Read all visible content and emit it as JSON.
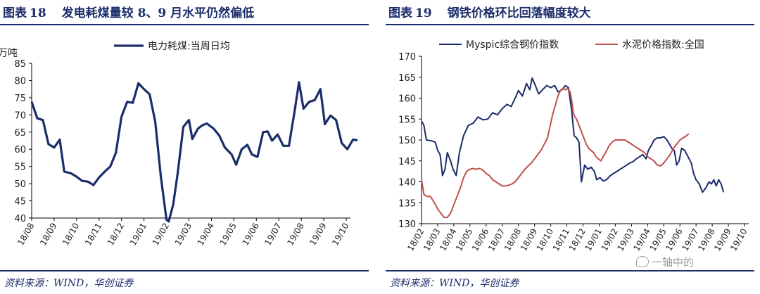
{
  "left": {
    "fig_label": "图表",
    "fig_number": "18",
    "fig_title": "发电耗煤量较 8、9 月水平仍然偏低",
    "source": "资料来源：WIND，华创证券"
  },
  "right": {
    "fig_label": "图表",
    "fig_number": "19",
    "fig_title": "钢铁价格环比回落幅度较大",
    "source": "资料来源：WIND，华创证券"
  },
  "watermark": "一轴中的",
  "chart_data": [
    {
      "type": "line",
      "title": "",
      "ylabel": "万吨",
      "ylim": [
        40,
        85
      ],
      "yticks": [
        40,
        45,
        50,
        55,
        60,
        65,
        70,
        75,
        80,
        85
      ],
      "grid": false,
      "legend_position": "top",
      "categories": [
        "18/08",
        "18/09",
        "18/10",
        "18/11",
        "18/12",
        "19/01",
        "19/02",
        "19/03",
        "19/04",
        "19/05",
        "19/06",
        "19/07",
        "19/08",
        "19/09",
        "19/10"
      ],
      "series": [
        {
          "name": "电力耗煤:当周日均",
          "color": "#1b2d6b",
          "points": [
            [
              0.0,
              73.8
            ],
            [
              0.25,
              69.0
            ],
            [
              0.5,
              68.5
            ],
            [
              0.75,
              61.5
            ],
            [
              1.0,
              60.5
            ],
            [
              1.25,
              62.8
            ],
            [
              1.45,
              53.5
            ],
            [
              1.75,
              53.0
            ],
            [
              2.0,
              52.0
            ],
            [
              2.25,
              50.8
            ],
            [
              2.5,
              50.6
            ],
            [
              2.75,
              49.6
            ],
            [
              3.0,
              51.8
            ],
            [
              3.25,
              53.5
            ],
            [
              3.5,
              55.0
            ],
            [
              3.75,
              59.0
            ],
            [
              4.0,
              69.5
            ],
            [
              4.25,
              73.8
            ],
            [
              4.5,
              73.5
            ],
            [
              4.75,
              79.2
            ],
            [
              5.0,
              77.5
            ],
            [
              5.25,
              76.0
            ],
            [
              5.5,
              68.0
            ],
            [
              5.75,
              52.0
            ],
            [
              6.0,
              39.5
            ],
            [
              6.1,
              39.0
            ],
            [
              6.3,
              44.0
            ],
            [
              6.5,
              53.0
            ],
            [
              6.75,
              66.5
            ],
            [
              7.0,
              68.5
            ],
            [
              7.15,
              63.0
            ],
            [
              7.4,
              66.0
            ],
            [
              7.6,
              67.0
            ],
            [
              7.8,
              67.5
            ],
            [
              8.1,
              66.0
            ],
            [
              8.35,
              64.0
            ],
            [
              8.6,
              60.5
            ],
            [
              8.9,
              58.5
            ],
            [
              9.1,
              55.5
            ],
            [
              9.35,
              60.0
            ],
            [
              9.6,
              61.3
            ],
            [
              9.8,
              58.5
            ],
            [
              10.05,
              57.8
            ],
            [
              10.3,
              65.0
            ],
            [
              10.5,
              65.2
            ],
            [
              10.7,
              62.5
            ],
            [
              10.95,
              64.3
            ],
            [
              11.2,
              61.0
            ],
            [
              11.45,
              61.0
            ],
            [
              11.7,
              71.0
            ],
            [
              11.9,
              79.5
            ],
            [
              12.1,
              71.8
            ],
            [
              12.35,
              73.8
            ],
            [
              12.6,
              74.3
            ],
            [
              12.85,
              77.5
            ],
            [
              13.05,
              67.3
            ],
            [
              13.3,
              69.8
            ],
            [
              13.55,
              68.5
            ],
            [
              13.8,
              61.8
            ],
            [
              14.05,
              60.0
            ],
            [
              14.3,
              62.8
            ],
            [
              14.5,
              62.6
            ]
          ]
        }
      ]
    },
    {
      "type": "line",
      "title": "",
      "ylim": [
        130,
        170
      ],
      "yticks": [
        130,
        135,
        140,
        145,
        150,
        155,
        160,
        165,
        170
      ],
      "grid": false,
      "legend_position": "top",
      "categories": [
        "18/02",
        "18/03",
        "18/04",
        "18/05",
        "18/06",
        "18/07",
        "18/08",
        "18/09",
        "18/10",
        "18/11",
        "18/12",
        "19/01",
        "19/02",
        "19/03",
        "19/04",
        "19/05",
        "19/06",
        "19/07",
        "19/08",
        "19/09",
        "19/10"
      ],
      "series": [
        {
          "name": "Myspic综合钢价指数",
          "color": "#1b2d6b",
          "points": [
            [
              0.0,
              154.5
            ],
            [
              0.15,
              153.5
            ],
            [
              0.3,
              150.0
            ],
            [
              0.6,
              149.8
            ],
            [
              0.85,
              149.5
            ],
            [
              1.0,
              147.5
            ],
            [
              1.15,
              146.5
            ],
            [
              1.3,
              141.5
            ],
            [
              1.45,
              143.0
            ],
            [
              1.6,
              147.0
            ],
            [
              1.8,
              145.0
            ],
            [
              1.95,
              143.0
            ],
            [
              2.15,
              141.5
            ],
            [
              2.35,
              147.0
            ],
            [
              2.6,
              151.0
            ],
            [
              2.9,
              153.5
            ],
            [
              3.2,
              154.0
            ],
            [
              3.5,
              155.5
            ],
            [
              3.8,
              154.8
            ],
            [
              4.1,
              155.0
            ],
            [
              4.4,
              156.5
            ],
            [
              4.7,
              156.0
            ],
            [
              5.0,
              157.5
            ],
            [
              5.3,
              158.5
            ],
            [
              5.55,
              158.0
            ],
            [
              5.8,
              160.0
            ],
            [
              6.0,
              161.8
            ],
            [
              6.25,
              160.5
            ],
            [
              6.5,
              163.5
            ],
            [
              6.7,
              162.0
            ],
            [
              6.85,
              164.8
            ],
            [
              7.05,
              163.0
            ],
            [
              7.25,
              161.0
            ],
            [
              7.5,
              162.0
            ],
            [
              7.75,
              163.0
            ],
            [
              8.0,
              162.5
            ],
            [
              8.25,
              163.0
            ],
            [
              8.45,
              161.5
            ],
            [
              8.7,
              162.0
            ],
            [
              8.9,
              163.0
            ],
            [
              9.1,
              162.5
            ],
            [
              9.3,
              157.0
            ],
            [
              9.45,
              151.0
            ],
            [
              9.6,
              150.5
            ],
            [
              9.75,
              149.5
            ],
            [
              9.9,
              140.0
            ],
            [
              10.1,
              144.0
            ],
            [
              10.3,
              143.0
            ],
            [
              10.5,
              143.5
            ],
            [
              10.7,
              142.5
            ],
            [
              10.85,
              140.5
            ],
            [
              11.05,
              141.0
            ],
            [
              11.25,
              140.2
            ],
            [
              11.45,
              140.5
            ],
            [
              11.7,
              141.5
            ],
            [
              11.9,
              142.0
            ],
            [
              12.1,
              142.5
            ],
            [
              12.3,
              143.0
            ],
            [
              12.5,
              143.5
            ],
            [
              12.7,
              144.0
            ],
            [
              12.9,
              144.5
            ],
            [
              13.1,
              144.8
            ],
            [
              13.3,
              145.5
            ],
            [
              13.5,
              146.0
            ],
            [
              13.7,
              146.5
            ],
            [
              13.9,
              145.5
            ],
            [
              14.05,
              147.5
            ],
            [
              14.2,
              148.5
            ],
            [
              14.4,
              150.0
            ],
            [
              14.6,
              150.5
            ],
            [
              14.8,
              150.5
            ],
            [
              15.0,
              150.8
            ],
            [
              15.2,
              150.0
            ],
            [
              15.35,
              149.0
            ],
            [
              15.5,
              148.0
            ],
            [
              15.65,
              147.5
            ],
            [
              15.8,
              144.0
            ],
            [
              15.95,
              145.0
            ],
            [
              16.1,
              148.0
            ],
            [
              16.3,
              147.5
            ],
            [
              16.5,
              146.0
            ],
            [
              16.7,
              144.5
            ],
            [
              16.85,
              142.0
            ],
            [
              17.0,
              140.5
            ],
            [
              17.2,
              139.5
            ],
            [
              17.4,
              137.5
            ],
            [
              17.6,
              138.5
            ],
            [
              17.8,
              140.0
            ],
            [
              17.95,
              139.5
            ],
            [
              18.1,
              140.5
            ],
            [
              18.25,
              139.0
            ],
            [
              18.4,
              140.5
            ],
            [
              18.55,
              139.5
            ],
            [
              18.7,
              137.5
            ]
          ]
        },
        {
          "name": "水泥价格指数:全国",
          "color": "#c0504d",
          "points": [
            [
              0.0,
              140.5
            ],
            [
              0.15,
              137.0
            ],
            [
              0.35,
              136.5
            ],
            [
              0.55,
              136.5
            ],
            [
              0.8,
              135.0
            ],
            [
              1.0,
              133.5
            ],
            [
              1.2,
              132.5
            ],
            [
              1.4,
              131.5
            ],
            [
              1.6,
              131.5
            ],
            [
              1.8,
              132.5
            ],
            [
              2.0,
              134.5
            ],
            [
              2.15,
              136.0
            ],
            [
              2.3,
              137.5
            ],
            [
              2.45,
              139.0
            ],
            [
              2.6,
              141.0
            ],
            [
              2.8,
              142.5
            ],
            [
              3.0,
              143.0
            ],
            [
              3.2,
              143.2
            ],
            [
              3.4,
              143.0
            ],
            [
              3.6,
              143.2
            ],
            [
              3.8,
              142.8
            ],
            [
              4.0,
              142.0
            ],
            [
              4.2,
              141.5
            ],
            [
              4.4,
              140.5
            ],
            [
              4.6,
              140.0
            ],
            [
              4.8,
              139.5
            ],
            [
              5.0,
              139.0
            ],
            [
              5.2,
              139.0
            ],
            [
              5.4,
              139.2
            ],
            [
              5.6,
              139.5
            ],
            [
              5.8,
              140.0
            ],
            [
              6.0,
              141.0
            ],
            [
              6.2,
              142.0
            ],
            [
              6.4,
              143.0
            ],
            [
              6.6,
              143.8
            ],
            [
              6.8,
              144.5
            ],
            [
              7.0,
              145.5
            ],
            [
              7.2,
              146.5
            ],
            [
              7.4,
              147.5
            ],
            [
              7.6,
              149.0
            ],
            [
              7.8,
              150.5
            ],
            [
              8.0,
              154.0
            ],
            [
              8.15,
              156.5
            ],
            [
              8.3,
              158.5
            ],
            [
              8.45,
              160.5
            ],
            [
              8.6,
              161.8
            ],
            [
              8.75,
              162.3
            ],
            [
              8.9,
              162.0
            ],
            [
              9.05,
              162.3
            ],
            [
              9.2,
              161.5
            ],
            [
              9.3,
              159.5
            ],
            [
              9.4,
              156.5
            ],
            [
              9.5,
              155.5
            ],
            [
              9.6,
              155.0
            ],
            [
              9.75,
              153.5
            ],
            [
              9.9,
              152.0
            ],
            [
              10.05,
              150.5
            ],
            [
              10.2,
              149.0
            ],
            [
              10.35,
              148.0
            ],
            [
              10.5,
              147.5
            ],
            [
              10.65,
              147.0
            ],
            [
              10.8,
              146.0
            ],
            [
              10.95,
              145.5
            ],
            [
              11.1,
              145.0
            ],
            [
              11.25,
              146.0
            ],
            [
              11.4,
              147.0
            ],
            [
              11.6,
              148.5
            ],
            [
              11.8,
              149.5
            ],
            [
              12.0,
              150.0
            ],
            [
              12.2,
              150.0
            ],
            [
              12.4,
              150.0
            ],
            [
              12.6,
              150.0
            ],
            [
              12.8,
              149.5
            ],
            [
              13.0,
              149.0
            ],
            [
              13.2,
              148.5
            ],
            [
              13.4,
              148.0
            ],
            [
              13.6,
              147.5
            ],
            [
              13.8,
              147.0
            ],
            [
              14.0,
              146.0
            ],
            [
              14.2,
              145.5
            ],
            [
              14.4,
              145.0
            ],
            [
              14.6,
              144.0
            ],
            [
              14.8,
              143.8
            ],
            [
              15.0,
              144.5
            ],
            [
              15.2,
              145.5
            ],
            [
              15.4,
              146.5
            ],
            [
              15.6,
              148.0
            ],
            [
              15.8,
              149.0
            ],
            [
              16.0,
              150.0
            ],
            [
              16.2,
              150.5
            ],
            [
              16.4,
              151.0
            ],
            [
              16.55,
              151.5
            ]
          ]
        }
      ]
    }
  ]
}
